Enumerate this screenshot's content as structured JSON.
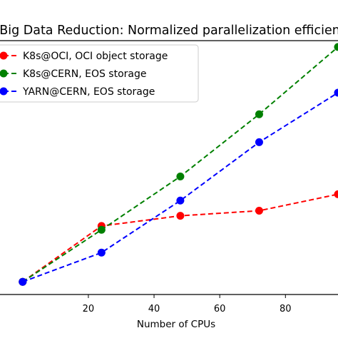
{
  "chart_data": {
    "type": "line",
    "title": "Big Data Reduction: Normalized parallelization efficiency",
    "xlabel": "Number of CPUs",
    "ylabel": "",
    "xlim": [
      -6.9,
      96
    ],
    "ylim": [
      0,
      10
    ],
    "xticks": [
      20,
      40,
      60,
      80
    ],
    "grid": false,
    "legend_position": "upper-left",
    "series": [
      {
        "name": "K8s@OCI, OCI object storage",
        "color": "#ff0000",
        "linestyle": "dashed",
        "x": [
          0,
          24,
          48,
          72,
          96
        ],
        "y": [
          0.5,
          2.7,
          3.1,
          3.3,
          3.95
        ]
      },
      {
        "name": "K8s@CERN, EOS storage",
        "color": "#008000",
        "linestyle": "dashed",
        "x": [
          0,
          24,
          48,
          72,
          96
        ],
        "y": [
          0.5,
          2.55,
          4.65,
          7.1,
          9.75
        ]
      },
      {
        "name": "YARN@CERN, EOS storage",
        "color": "#0000ff",
        "linestyle": "dashed",
        "x": [
          0,
          24,
          48,
          72,
          96
        ],
        "y": [
          0.5,
          1.65,
          3.7,
          6.0,
          7.95
        ]
      }
    ]
  }
}
